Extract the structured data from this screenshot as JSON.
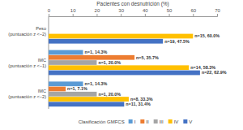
{
  "chart_data": {
    "type": "bar",
    "orientation": "horizontal",
    "xlabel": "Pacientes con desnutrición (%)",
    "legend_title": "Clasificación GMFCS",
    "legend": "bottom",
    "data_labels": true,
    "grid": false,
    "categories": [
      "Peso\n(puntuación z <−2)",
      "IMC\n(puntuación z <−1)",
      "IMC\n(puntuación z <−2)"
    ],
    "xlim": [
      0,
      70
    ],
    "xticks": [
      0,
      10,
      20,
      30,
      40,
      50,
      60,
      70
    ],
    "series": [
      {
        "name": "I",
        "color": "#5b9bd5",
        "values": [
          null,
          14.3,
          14.3
        ],
        "value_labels": [
          null,
          "n=1, 14.3%",
          "n=1, 14.3%"
        ]
      },
      {
        "name": "II",
        "color": "#ed7d31",
        "values": [
          null,
          35.7,
          7.1
        ],
        "value_labels": [
          null,
          "n=5, 35.7%",
          "n=1, 7.1%"
        ]
      },
      {
        "name": "III",
        "color": "#a5a5a5",
        "values": [
          null,
          20.0,
          20.0
        ],
        "value_labels": [
          null,
          "n=1, 20.0%",
          "n=1, 20.0%"
        ]
      },
      {
        "name": "IV",
        "color": "#ffc000",
        "values": [
          60.0,
          58.3,
          33.3
        ],
        "value_labels": [
          "n=15, 60.0%",
          "n=14, 58.3%",
          "n=8, 33.3%"
        ]
      },
      {
        "name": "V",
        "color": "#4472c4",
        "values": [
          47.5,
          62.9,
          31.4
        ],
        "value_labels": [
          "n=19, 47.5%",
          "n=22, 62.9%",
          "n=11, 31.4%"
        ]
      }
    ]
  }
}
